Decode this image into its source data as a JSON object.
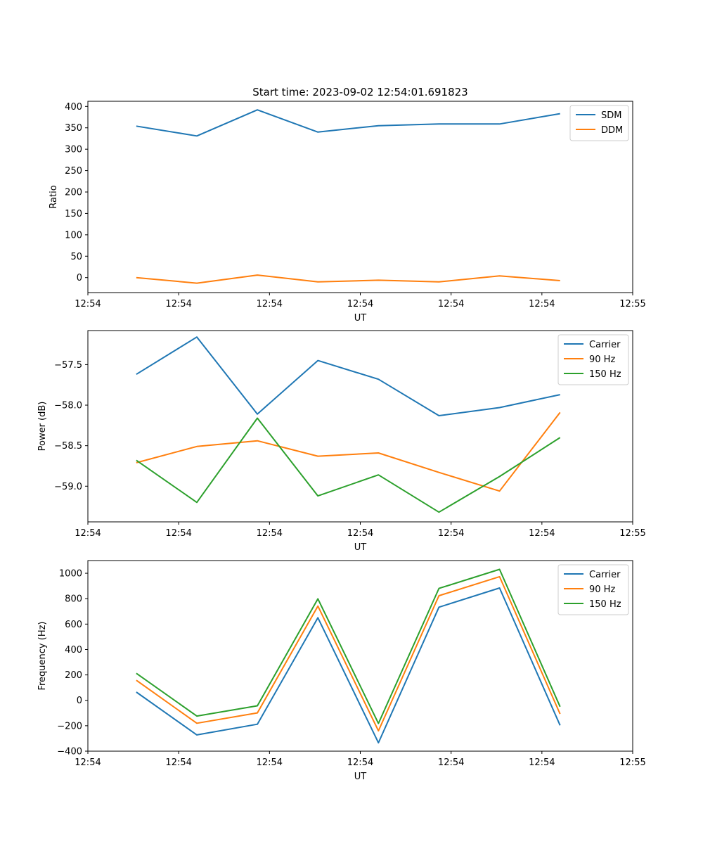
{
  "chart_data": [
    {
      "type": "line",
      "title": "Start time: 2023-09-02 12:54:01.691823",
      "xlabel": "UT",
      "ylabel": "Ratio",
      "x": [
        1,
        2,
        3,
        4,
        5,
        6,
        7,
        8
      ],
      "xlim": [
        0.2,
        9.2
      ],
      "x_tick_positions": [
        0.2,
        1.7,
        3.2,
        4.7,
        6.2,
        7.7,
        9.2
      ],
      "x_tick_labels": [
        "12:54",
        "12:54",
        "12:54",
        "12:54",
        "12:54",
        "12:54",
        "12:55"
      ],
      "ylim": [
        -35,
        412
      ],
      "y_ticks": [
        0,
        50,
        100,
        150,
        200,
        250,
        300,
        350,
        400
      ],
      "y_tick_labels": [
        "0",
        "50",
        "100",
        "150",
        "200",
        "250",
        "300",
        "350",
        "400"
      ],
      "legend_position": "top-right",
      "series": [
        {
          "name": "SDM",
          "color": "#1f77b4",
          "values": [
            354,
            331,
            392,
            340,
            355,
            359,
            359,
            383
          ]
        },
        {
          "name": "DDM",
          "color": "#ff7f0e",
          "values": [
            0,
            -13,
            6,
            -10,
            -6,
            -10,
            4,
            -7
          ]
        }
      ]
    },
    {
      "type": "line",
      "title": "",
      "xlabel": "UT",
      "ylabel": "Power (dB)",
      "x": [
        1,
        2,
        3,
        4,
        5,
        6,
        7,
        8
      ],
      "xlim": [
        0.2,
        9.2
      ],
      "x_tick_positions": [
        0.2,
        1.7,
        3.2,
        4.7,
        6.2,
        7.7,
        9.2
      ],
      "x_tick_labels": [
        "12:54",
        "12:54",
        "12:54",
        "12:54",
        "12:54",
        "12:54",
        "12:55"
      ],
      "ylim": [
        -59.44,
        -57.08
      ],
      "y_ticks": [
        -59.0,
        -58.5,
        -58.0,
        -57.5
      ],
      "y_tick_labels": [
        "−59.0",
        "−58.5",
        "−58.0",
        "−57.5"
      ],
      "legend_position": "top-right",
      "series": [
        {
          "name": "Carrier",
          "color": "#1f77b4",
          "values": [
            -57.62,
            -57.16,
            -58.11,
            -57.45,
            -57.68,
            -58.13,
            -58.03,
            -57.87
          ]
        },
        {
          "name": "90 Hz",
          "color": "#ff7f0e",
          "values": [
            -58.71,
            -58.51,
            -58.44,
            -58.63,
            -58.59,
            -58.83,
            -59.06,
            -58.09
          ]
        },
        {
          "name": "150 Hz",
          "color": "#2ca02c",
          "values": [
            -58.68,
            -59.2,
            -58.16,
            -59.12,
            -58.86,
            -59.32,
            -58.88,
            -58.4
          ]
        }
      ]
    },
    {
      "type": "line",
      "title": "",
      "xlabel": "UT",
      "ylabel": "Frequency (Hz)",
      "x": [
        1,
        2,
        3,
        4,
        5,
        6,
        7,
        8
      ],
      "xlim": [
        0.2,
        9.2
      ],
      "x_tick_positions": [
        0.2,
        1.7,
        3.2,
        4.7,
        6.2,
        7.7,
        9.2
      ],
      "x_tick_labels": [
        "12:54",
        "12:54",
        "12:54",
        "12:54",
        "12:54",
        "12:54",
        "12:55"
      ],
      "ylim": [
        -400,
        1100
      ],
      "y_ticks": [
        -400,
        -200,
        0,
        200,
        400,
        600,
        800,
        1000
      ],
      "y_tick_labels": [
        "−400",
        "−200",
        "0",
        "200",
        "400",
        "600",
        "800",
        "1000"
      ],
      "legend_position": "top-right",
      "series": [
        {
          "name": "Carrier",
          "color": "#1f77b4",
          "values": [
            65,
            -272,
            -188,
            650,
            -334,
            733,
            884,
            -197
          ]
        },
        {
          "name": "90 Hz",
          "color": "#ff7f0e",
          "values": [
            158,
            -180,
            -99,
            742,
            -240,
            823,
            973,
            -107
          ]
        },
        {
          "name": "150 Hz",
          "color": "#2ca02c",
          "values": [
            213,
            -124,
            -43,
            799,
            -182,
            881,
            1031,
            -50
          ]
        }
      ]
    }
  ]
}
